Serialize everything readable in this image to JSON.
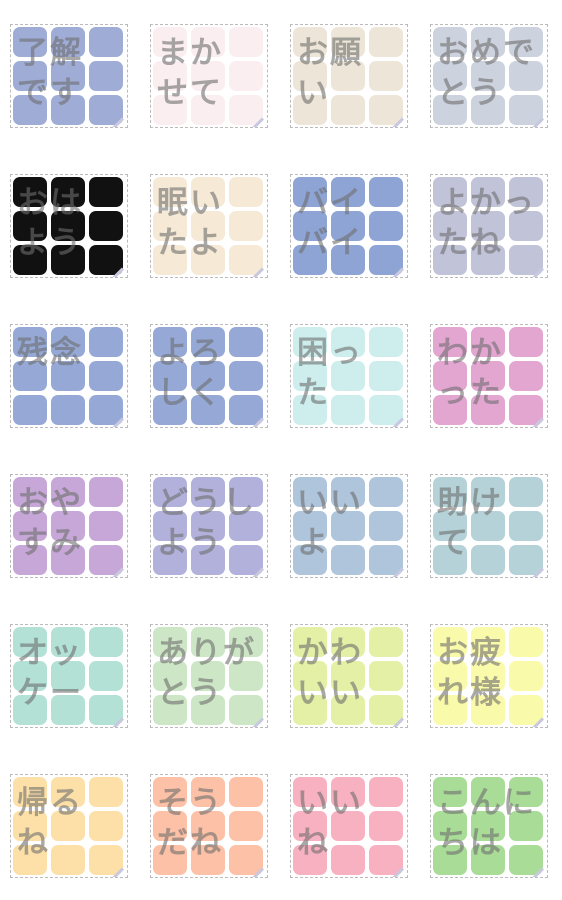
{
  "stickers": [
    {
      "lines": [
        "了解",
        "です"
      ],
      "color": "#9fadd6"
    },
    {
      "lines": [
        "まか",
        "せて"
      ],
      "color": "#fbeef1"
    },
    {
      "lines": [
        "お願",
        "い"
      ],
      "color": "#ede6d8"
    },
    {
      "lines": [
        "おめで",
        "とう"
      ],
      "color": "#cdd3de"
    },
    {
      "lines": [
        "おは",
        "よう"
      ],
      "color": "#111111"
    },
    {
      "lines": [
        "眠い",
        "たよ"
      ],
      "color": "#f6ead6"
    },
    {
      "lines": [
        "バイ",
        "バイ"
      ],
      "color": "#8ea4d4"
    },
    {
      "lines": [
        "よかっ",
        "たね"
      ],
      "color": "#c1c4d9"
    },
    {
      "lines": [
        "残念"
      ],
      "color": "#95a8d6"
    },
    {
      "lines": [
        "よろ",
        "しく"
      ],
      "color": "#95a8d6"
    },
    {
      "lines": [
        "困っ",
        "た"
      ],
      "color": "#cdeeed"
    },
    {
      "lines": [
        "わか",
        "った"
      ],
      "color": "#e3a6d1"
    },
    {
      "lines": [
        "おや",
        "すみ"
      ],
      "color": "#c6a7d7"
    },
    {
      "lines": [
        "どうし",
        "よう"
      ],
      "color": "#b1b1dc"
    },
    {
      "lines": [
        "いい",
        "よ"
      ],
      "color": "#afc5dc"
    },
    {
      "lines": [
        "助け",
        "て"
      ],
      "color": "#b4d2d8"
    },
    {
      "lines": [
        "オッ",
        "ケー"
      ],
      "color": "#b3e1d6"
    },
    {
      "lines": [
        "ありが",
        "とう"
      ],
      "color": "#cde6c5"
    },
    {
      "lines": [
        "かわ",
        "いい"
      ],
      "color": "#e4f0a6"
    },
    {
      "lines": [
        "お疲",
        "れ様"
      ],
      "color": "#fafaab"
    },
    {
      "lines": [
        "帰る",
        "ね"
      ],
      "color": "#fde0a8"
    },
    {
      "lines": [
        "そう",
        "だね"
      ],
      "color": "#fcc1a6"
    },
    {
      "lines": [
        "いい",
        "ね"
      ],
      "color": "#f8b1c1"
    },
    {
      "lines": [
        "こんに",
        "ちは"
      ],
      "color": "#a9dc96"
    }
  ]
}
